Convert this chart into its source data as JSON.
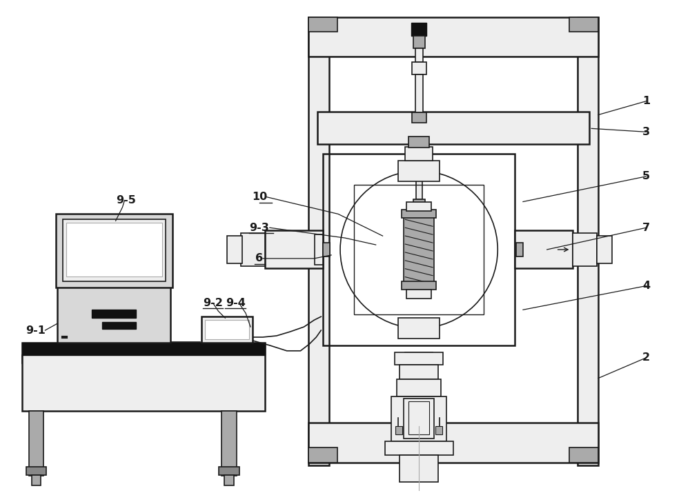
{
  "bg_color": "#ffffff",
  "lc": "#1a1a1a",
  "white": "#ffffff",
  "gray_vlight": "#eeeeee",
  "gray_light": "#d8d8d8",
  "gray_med": "#aaaaaa",
  "gray_dark": "#888888",
  "gray_vdark": "#555555",
  "black": "#111111",
  "figsize": [
    10.0,
    7.15
  ],
  "dpi": 100
}
